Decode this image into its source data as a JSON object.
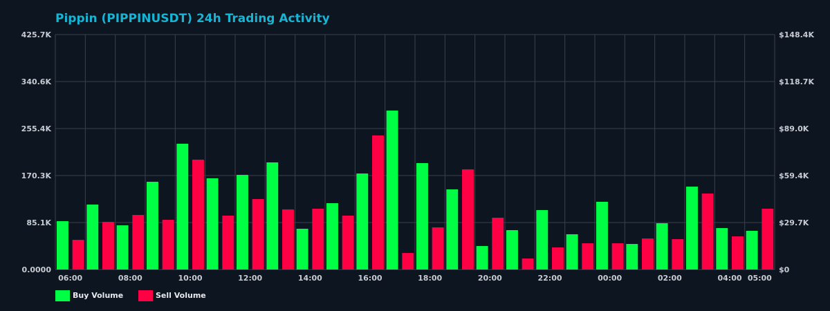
{
  "chart_data": {
    "type": "bar",
    "title": "Pippin (PIPPINUSDT) 24h Trading Activity",
    "xlabel": "",
    "ylabel": "",
    "categories": [
      "06:00",
      "07:00",
      "08:00",
      "09:00",
      "10:00",
      "11:00",
      "12:00",
      "13:00",
      "14:00",
      "15:00",
      "16:00",
      "17:00",
      "18:00",
      "19:00",
      "20:00",
      "21:00",
      "22:00",
      "23:00",
      "00:00",
      "01:00",
      "02:00",
      "03:00",
      "04:00",
      "05:00"
    ],
    "x_tick_labels": [
      "06:00",
      "08:00",
      "10:00",
      "12:00",
      "14:00",
      "16:00",
      "18:00",
      "20:00",
      "22:00",
      "00:00",
      "02:00",
      "04:00",
      "05:00"
    ],
    "series": [
      {
        "name": "Buy Volume",
        "color": "#00ff44",
        "values": [
          87600,
          117700,
          80100,
          159000,
          227900,
          165300,
          171500,
          194100,
          73900,
          120200,
          174000,
          288000,
          192800,
          145200,
          42600,
          71400,
          107700,
          63900,
          122700,
          46300,
          83900,
          150200,
          75100,
          70100
        ]
      },
      {
        "name": "Sell Volume",
        "color": "#ff0044",
        "values": [
          53800,
          86400,
          98900,
          90100,
          199100,
          97700,
          127700,
          108900,
          110200,
          97700,
          242900,
          30000,
          76400,
          181500,
          93900,
          20000,
          40100,
          47600,
          47600,
          56300,
          55100,
          137700,
          60100,
          110200
        ]
      }
    ],
    "ylim": [
      0,
      425700
    ],
    "y_tick_labels": [
      "0.0000",
      "85.1K",
      "170.3K",
      "255.4K",
      "340.6K",
      "425.7K"
    ],
    "y2lim": [
      0,
      148400
    ],
    "y2_tick_labels": [
      "$0",
      "$29.7K",
      "$59.4K",
      "$89.0K",
      "$118.7K",
      "$148.4K"
    ],
    "grid": true,
    "legend_position": "bottom-left",
    "colors": {
      "background": "#0d1520",
      "grid": "#3a414b",
      "title": "#18b4d4"
    }
  }
}
